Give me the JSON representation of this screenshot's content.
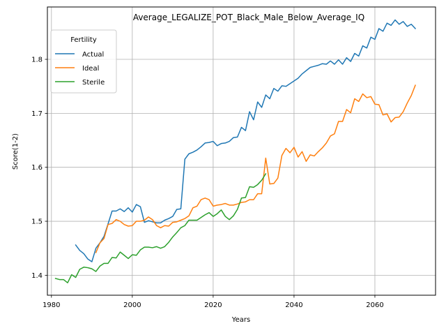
{
  "chart_data": {
    "type": "line",
    "title": "Average_LEGALIZE_POT_Black_Male_Below_Average_IQ",
    "xlabel": "Years",
    "ylabel": "Score(1-2)",
    "xlim": [
      1979,
      2075
    ],
    "ylim": [
      1.363,
      1.897
    ],
    "xticks": [
      1980,
      2000,
      2020,
      2040,
      2060
    ],
    "yticks": [
      1.4,
      1.5,
      1.6,
      1.7,
      1.8
    ],
    "xtick_labels": [
      "1980",
      "2000",
      "2020",
      "2040",
      "2060"
    ],
    "ytick_labels": [
      "1.4",
      "1.5",
      "1.6",
      "1.7",
      "1.8"
    ],
    "grid": true,
    "legend": {
      "title": "Fertility",
      "position": "top-left"
    },
    "series": [
      {
        "name": "Actual",
        "color": "#1f77b4",
        "x": [
          1986,
          1987,
          1988,
          1989,
          1990,
          1991,
          1992,
          1993,
          1994,
          1995,
          1996,
          1997,
          1998,
          1999,
          2000,
          2001,
          2002,
          2003,
          2004,
          2005,
          2006,
          2007,
          2008,
          2009,
          2010,
          2011,
          2012,
          2013,
          2014,
          2015,
          2016,
          2017,
          2018,
          2019,
          2020,
          2021,
          2022,
          2023,
          2024,
          2025,
          2026,
          2027,
          2028,
          2029,
          2030,
          2031,
          2032,
          2033,
          2034,
          2035,
          2036,
          2037,
          2038,
          2039,
          2040,
          2041,
          2042,
          2043,
          2044,
          2045,
          2046,
          2047,
          2048,
          2049,
          2050,
          2051,
          2052,
          2053,
          2054,
          2055,
          2056,
          2057,
          2058,
          2059,
          2060,
          2061,
          2062,
          2063,
          2064,
          2065,
          2066,
          2067,
          2068,
          2069,
          2070
        ],
        "values": [
          1.456,
          1.446,
          1.44,
          1.43,
          1.425,
          1.45,
          1.46,
          1.472,
          1.495,
          1.519,
          1.519,
          1.523,
          1.518,
          1.525,
          1.517,
          1.531,
          1.527,
          1.498,
          1.501,
          1.499,
          1.497,
          1.497,
          1.502,
          1.505,
          1.509,
          1.522,
          1.523,
          1.615,
          1.625,
          1.628,
          1.632,
          1.638,
          1.645,
          1.646,
          1.648,
          1.64,
          1.644,
          1.645,
          1.648,
          1.655,
          1.656,
          1.674,
          1.668,
          1.703,
          1.688,
          1.721,
          1.711,
          1.734,
          1.727,
          1.746,
          1.741,
          1.751,
          1.75,
          1.755,
          1.76,
          1.765,
          1.773,
          1.779,
          1.785,
          1.787,
          1.789,
          1.792,
          1.791,
          1.797,
          1.791,
          1.799,
          1.791,
          1.803,
          1.796,
          1.811,
          1.806,
          1.825,
          1.821,
          1.841,
          1.837,
          1.857,
          1.852,
          1.867,
          1.863,
          1.873,
          1.865,
          1.87,
          1.861,
          1.865,
          1.857
        ]
      },
      {
        "name": "Ideal",
        "color": "#ff7f0e",
        "x": [
          1991,
          1992,
          1993,
          1994,
          1995,
          1996,
          1997,
          1998,
          1999,
          2000,
          2001,
          2002,
          2003,
          2004,
          2005,
          2006,
          2007,
          2008,
          2009,
          2010,
          2011,
          2012,
          2013,
          2014,
          2015,
          2016,
          2017,
          2018,
          2019,
          2020,
          2021,
          2022,
          2023,
          2024,
          2025,
          2026,
          2027,
          2028,
          2029,
          2030,
          2031,
          2032,
          2033,
          2034,
          2035,
          2036,
          2037,
          2038,
          2039,
          2040,
          2041,
          2042,
          2043,
          2044,
          2045,
          2046,
          2047,
          2048,
          2049,
          2050,
          2051,
          2052,
          2053,
          2054,
          2055,
          2056,
          2057,
          2058,
          2059,
          2060,
          2061,
          2062,
          2063,
          2064,
          2065,
          2066,
          2067,
          2068,
          2069,
          2070
        ],
        "values": [
          1.442,
          1.46,
          1.468,
          1.494,
          1.496,
          1.503,
          1.5,
          1.494,
          1.491,
          1.492,
          1.5,
          1.5,
          1.502,
          1.508,
          1.503,
          1.492,
          1.488,
          1.492,
          1.491,
          1.498,
          1.499,
          1.502,
          1.505,
          1.51,
          1.525,
          1.528,
          1.54,
          1.543,
          1.54,
          1.528,
          1.53,
          1.531,
          1.533,
          1.53,
          1.53,
          1.532,
          1.535,
          1.536,
          1.54,
          1.54,
          1.551,
          1.551,
          1.617,
          1.569,
          1.57,
          1.58,
          1.622,
          1.635,
          1.627,
          1.637,
          1.619,
          1.629,
          1.611,
          1.623,
          1.621,
          1.629,
          1.636,
          1.645,
          1.658,
          1.662,
          1.685,
          1.685,
          1.707,
          1.701,
          1.727,
          1.722,
          1.736,
          1.729,
          1.731,
          1.717,
          1.716,
          1.697,
          1.699,
          1.684,
          1.692,
          1.693,
          1.703,
          1.719,
          1.733,
          1.752
        ]
      },
      {
        "name": "Sterile",
        "color": "#2ca02c",
        "x": [
          1981,
          1982,
          1983,
          1984,
          1985,
          1986,
          1987,
          1988,
          1989,
          1990,
          1991,
          1992,
          1993,
          1994,
          1995,
          1996,
          1997,
          1998,
          1999,
          2000,
          2001,
          2002,
          2003,
          2004,
          2005,
          2006,
          2007,
          2008,
          2009,
          2010,
          2011,
          2012,
          2013,
          2014,
          2015,
          2016,
          2017,
          2018,
          2019,
          2020,
          2021,
          2022,
          2023,
          2024,
          2025,
          2026,
          2027,
          2028,
          2029,
          2030,
          2031,
          2032,
          2033
        ],
        "values": [
          1.394,
          1.392,
          1.392,
          1.386,
          1.401,
          1.396,
          1.411,
          1.415,
          1.414,
          1.412,
          1.407,
          1.417,
          1.422,
          1.422,
          1.433,
          1.432,
          1.443,
          1.437,
          1.431,
          1.438,
          1.437,
          1.447,
          1.452,
          1.452,
          1.451,
          1.453,
          1.45,
          1.453,
          1.461,
          1.471,
          1.479,
          1.488,
          1.492,
          1.502,
          1.502,
          1.502,
          1.507,
          1.512,
          1.516,
          1.509,
          1.514,
          1.521,
          1.509,
          1.503,
          1.51,
          1.522,
          1.543,
          1.544,
          1.564,
          1.563,
          1.568,
          1.576,
          1.588
        ]
      }
    ]
  }
}
